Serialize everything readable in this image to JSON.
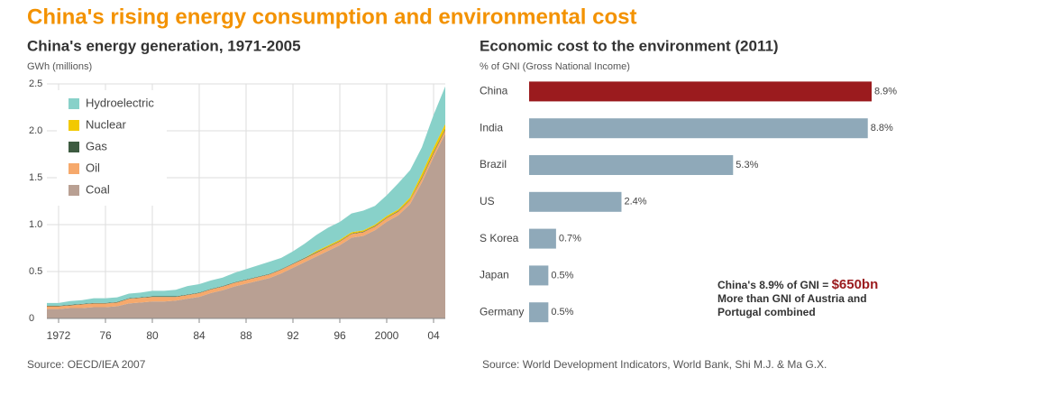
{
  "title": "China's rising energy consumption and environmental cost",
  "chart_data": [
    {
      "type": "area",
      "title": "China's energy generation, 1971-2005",
      "y_label": "GWh (millions)",
      "source": "Source: OECD/IEA 2007",
      "stacked": true,
      "grid": true,
      "legend": "upper left",
      "x": [
        1971,
        1972,
        1973,
        1974,
        1975,
        1976,
        1977,
        1978,
        1979,
        1980,
        1981,
        1982,
        1983,
        1984,
        1985,
        1986,
        1987,
        1988,
        1989,
        1990,
        1991,
        1992,
        1993,
        1994,
        1995,
        1996,
        1997,
        1998,
        1999,
        2000,
        2001,
        2002,
        2003,
        2004,
        2005
      ],
      "xlim": [
        1971,
        2005
      ],
      "xticks": [
        1972,
        {
          "value": 1976,
          "label": "76"
        },
        {
          "value": 1980,
          "label": "80"
        },
        {
          "value": 1984,
          "label": "84"
        },
        {
          "value": 1988,
          "label": "88"
        },
        {
          "value": 1992,
          "label": "92"
        },
        {
          "value": 1996,
          "label": "96"
        },
        2000,
        {
          "value": 2004,
          "label": "04"
        }
      ],
      "ylim": [
        0,
        2.5
      ],
      "yticks": [
        0,
        0.5,
        {
          "value": 1,
          "label": "1.0"
        },
        1.5,
        {
          "value": 2,
          "label": "2.0"
        },
        2.5
      ],
      "series": [
        {
          "name": "Coal",
          "color": "#b9a093",
          "values": [
            0.1,
            0.1,
            0.11,
            0.11,
            0.12,
            0.12,
            0.13,
            0.16,
            0.17,
            0.18,
            0.18,
            0.19,
            0.21,
            0.23,
            0.27,
            0.3,
            0.34,
            0.37,
            0.4,
            0.43,
            0.48,
            0.54,
            0.6,
            0.66,
            0.72,
            0.78,
            0.86,
            0.88,
            0.94,
            1.03,
            1.1,
            1.22,
            1.45,
            1.72,
            1.97
          ]
        },
        {
          "name": "Oil",
          "color": "#f6a96c",
          "values": [
            0.03,
            0.03,
            0.03,
            0.04,
            0.04,
            0.04,
            0.04,
            0.05,
            0.05,
            0.05,
            0.05,
            0.04,
            0.04,
            0.04,
            0.04,
            0.04,
            0.04,
            0.04,
            0.04,
            0.04,
            0.04,
            0.04,
            0.04,
            0.04,
            0.04,
            0.04,
            0.04,
            0.04,
            0.04,
            0.04,
            0.04,
            0.04,
            0.04,
            0.04,
            0.04
          ]
        },
        {
          "name": "Gas",
          "color": "#3d5b40",
          "values": [
            0.005,
            0.005,
            0.005,
            0.005,
            0.005,
            0.005,
            0.005,
            0.005,
            0.005,
            0.005,
            0.005,
            0.005,
            0.005,
            0.005,
            0.005,
            0.005,
            0.005,
            0.005,
            0.005,
            0.005,
            0.005,
            0.005,
            0.005,
            0.005,
            0.005,
            0.005,
            0.005,
            0.005,
            0.005,
            0.005,
            0.005,
            0.005,
            0.01,
            0.01,
            0.01
          ]
        },
        {
          "name": "Nuclear",
          "color": "#f2c900",
          "values": [
            0,
            0,
            0,
            0,
            0,
            0,
            0,
            0,
            0,
            0,
            0,
            0,
            0,
            0,
            0,
            0,
            0,
            0,
            0,
            0,
            0,
            0,
            0.002,
            0.014,
            0.013,
            0.014,
            0.014,
            0.014,
            0.015,
            0.017,
            0.017,
            0.025,
            0.043,
            0.05,
            0.053
          ]
        },
        {
          "name": "Hydroelectric",
          "color": "#88d1c9",
          "values": [
            0.03,
            0.03,
            0.04,
            0.04,
            0.05,
            0.05,
            0.05,
            0.05,
            0.05,
            0.06,
            0.06,
            0.07,
            0.09,
            0.09,
            0.09,
            0.09,
            0.1,
            0.11,
            0.12,
            0.13,
            0.12,
            0.13,
            0.15,
            0.17,
            0.19,
            0.19,
            0.2,
            0.21,
            0.2,
            0.22,
            0.28,
            0.29,
            0.28,
            0.35,
            0.4
          ]
        }
      ]
    },
    {
      "type": "hbar",
      "title": "Economic cost to the environment (2011)",
      "y_label": "% of GNI (Gross National Income)",
      "source": "Source: World Development Indicators, World Bank, Shi M.J. & Ma G.X.",
      "categories": [
        "China",
        "India",
        "Brazil",
        "US",
        "S Korea",
        "Japan",
        "Germany"
      ],
      "values": [
        8.9,
        8.8,
        5.3,
        2.4,
        0.7,
        0.5,
        0.5
      ],
      "value_labels": [
        "8.9%",
        "8.8%",
        "5.3%",
        "2.4%",
        "0.7%",
        "0.5%",
        "0.5%"
      ],
      "colors": [
        "#9b1b1e",
        "#8fa9b9",
        "#8fa9b9",
        "#8fa9b9",
        "#8fa9b9",
        "#8fa9b9",
        "#8fa9b9"
      ],
      "xlim": [
        0,
        8.9
      ],
      "annotation": {
        "text": "China's 8.9% of GNI =",
        "highlight": "$650bn",
        "note": "More than GNI of Austria and Portugal combined"
      }
    }
  ]
}
